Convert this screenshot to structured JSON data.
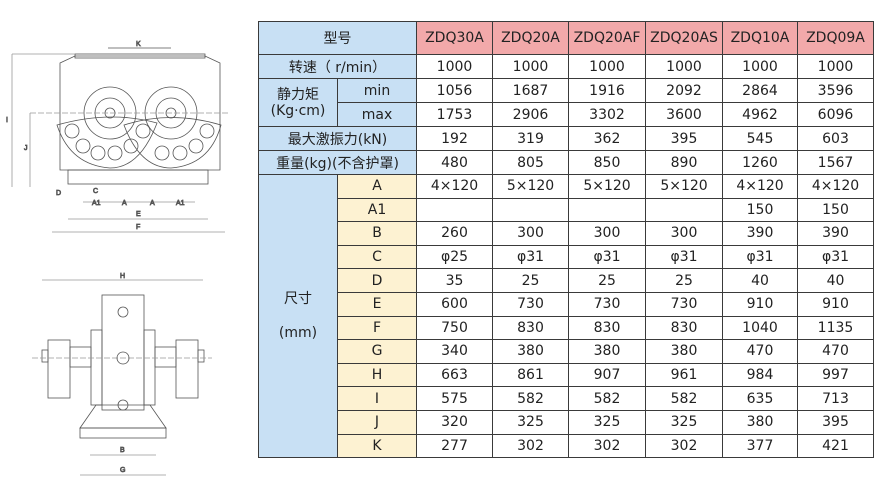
{
  "drawing": {
    "front_labels": [
      "K",
      "I",
      "J",
      "D",
      "C",
      "A1",
      "A",
      "A",
      "A1",
      "E",
      "F"
    ],
    "side_labels": [
      "H",
      "B",
      "G"
    ]
  },
  "table": {
    "header_label": "型号",
    "models": [
      "ZDQ30A",
      "ZDQ20A",
      "ZDQ20AF",
      "ZDQ20AS",
      "ZDQ10A",
      "ZDQ09A"
    ],
    "speed": {
      "label": "转速（ r/min）",
      "values": [
        "1000",
        "1000",
        "1000",
        "1000",
        "1000",
        "1000"
      ]
    },
    "static_moment": {
      "label_line1": "静力矩",
      "label_line2": "(Kg·cm)",
      "min": {
        "label": "min",
        "values": [
          "1056",
          "1687",
          "1916",
          "2092",
          "2864",
          "3596"
        ]
      },
      "max": {
        "label": "max",
        "values": [
          "1753",
          "2906",
          "3302",
          "3600",
          "4962",
          "6096"
        ]
      }
    },
    "force": {
      "label": "最大激振力(kN)",
      "values": [
        "192",
        "319",
        "362",
        "395",
        "545",
        "603"
      ]
    },
    "weight": {
      "label": "重量(kg)(不含护罩)",
      "values": [
        "480",
        "805",
        "850",
        "890",
        "1260",
        "1567"
      ]
    },
    "dimensions": {
      "label_line1": "尺寸",
      "label_line2": "(mm)",
      "rows": [
        {
          "label": "A",
          "values": [
            "4×120",
            "5×120",
            "5×120",
            "5×120",
            "4×120",
            "4×120"
          ]
        },
        {
          "label": "A1",
          "values": [
            "",
            "",
            "",
            "",
            "150",
            "150"
          ]
        },
        {
          "label": "B",
          "values": [
            "260",
            "300",
            "300",
            "300",
            "390",
            "390"
          ]
        },
        {
          "label": "C",
          "values": [
            "φ25",
            "φ31",
            "φ31",
            "φ31",
            "φ31",
            "φ31"
          ]
        },
        {
          "label": "D",
          "values": [
            "35",
            "25",
            "25",
            "25",
            "40",
            "40"
          ]
        },
        {
          "label": "E",
          "values": [
            "600",
            "730",
            "730",
            "730",
            "910",
            "910"
          ]
        },
        {
          "label": "F",
          "values": [
            "750",
            "830",
            "830",
            "830",
            "1040",
            "1135"
          ]
        },
        {
          "label": "G",
          "values": [
            "340",
            "380",
            "380",
            "380",
            "470",
            "470"
          ]
        },
        {
          "label": "H",
          "values": [
            "663",
            "861",
            "907",
            "961",
            "984",
            "997"
          ]
        },
        {
          "label": "I",
          "values": [
            "575",
            "582",
            "582",
            "582",
            "635",
            "713"
          ]
        },
        {
          "label": "J",
          "values": [
            "320",
            "325",
            "325",
            "325",
            "380",
            "395"
          ]
        },
        {
          "label": "K",
          "values": [
            "277",
            "302",
            "302",
            "302",
            "377",
            "421"
          ]
        }
      ]
    }
  }
}
